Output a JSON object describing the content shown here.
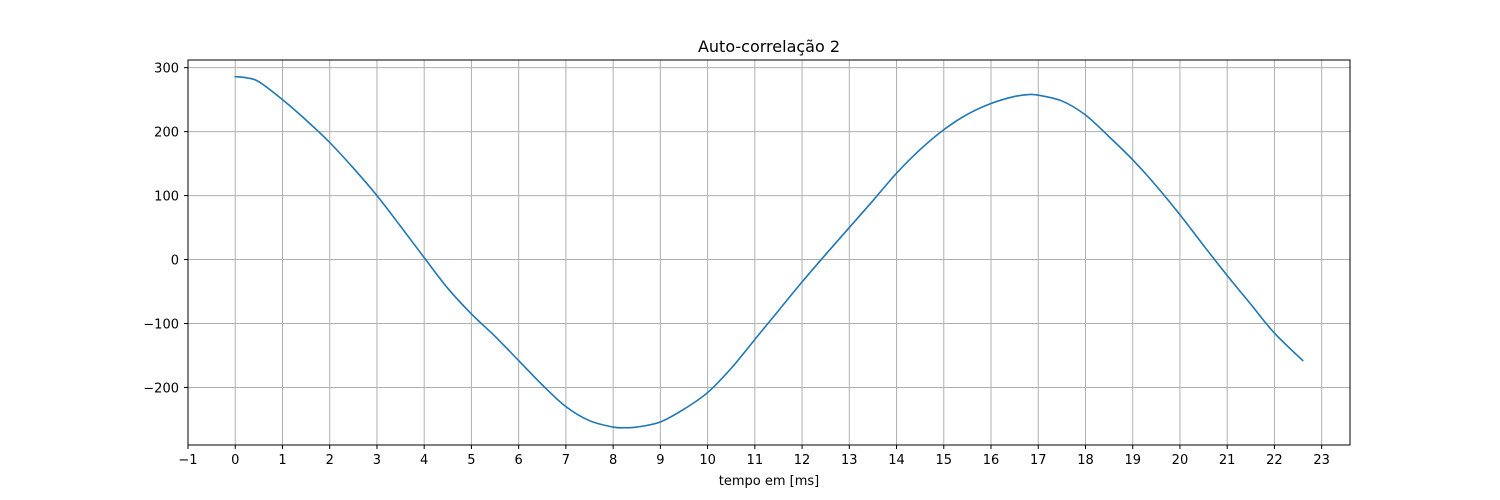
{
  "chart_data": {
    "type": "line",
    "title": "Auto-correlação 2",
    "xlabel": "tempo em [ms]",
    "ylabel": "",
    "xlim": [
      -1.0,
      23.6
    ],
    "ylim": [
      -290,
      312
    ],
    "x_ticks": [
      -1,
      0,
      1,
      2,
      3,
      4,
      5,
      6,
      7,
      8,
      9,
      10,
      11,
      12,
      13,
      14,
      15,
      16,
      17,
      18,
      19,
      20,
      21,
      22,
      23
    ],
    "x_tick_labels": [
      "−1",
      "0",
      "1",
      "2",
      "3",
      "4",
      "5",
      "6",
      "7",
      "8",
      "9",
      "10",
      "11",
      "12",
      "13",
      "14",
      "15",
      "16",
      "17",
      "18",
      "19",
      "20",
      "21",
      "22",
      "23"
    ],
    "y_ticks": [
      -200,
      -100,
      0,
      100,
      200,
      300
    ],
    "y_tick_labels": [
      "−200",
      "−100",
      "0",
      "100",
      "200",
      "300"
    ],
    "grid": true,
    "series": [
      {
        "color": "#1f77b4",
        "x": [
          0,
          0.25,
          0.5,
          1,
          1.5,
          2,
          2.5,
          3,
          3.5,
          4,
          4.5,
          5,
          5.5,
          6,
          6.5,
          7,
          7.5,
          8,
          8.25,
          8.5,
          9,
          9.5,
          10,
          10.5,
          11,
          11.5,
          12,
          12.5,
          13,
          13.5,
          14,
          14.5,
          15,
          15.5,
          16,
          16.5,
          16.8,
          17,
          17.5,
          18,
          18.5,
          19,
          19.5,
          20,
          20.5,
          21,
          21.5,
          22,
          22.6
        ],
        "y": [
          286,
          284,
          278,
          250,
          218,
          183,
          143,
          100,
          52,
          3,
          -45,
          -85,
          -120,
          -158,
          -196,
          -230,
          -252,
          -262,
          -263,
          -262,
          -254,
          -234,
          -208,
          -170,
          -125,
          -80,
          -35,
          8,
          50,
          92,
          135,
          172,
          203,
          227,
          244,
          255,
          258,
          257,
          248,
          226,
          192,
          156,
          115,
          70,
          22,
          -25,
          -70,
          -115,
          -158
        ]
      }
    ]
  }
}
